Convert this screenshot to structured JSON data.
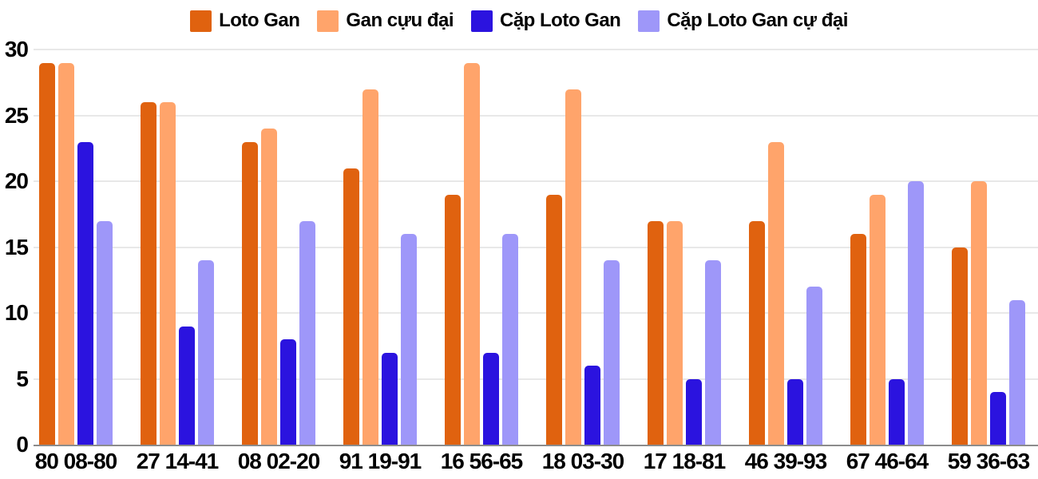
{
  "chart_data": {
    "type": "bar",
    "categories": [
      "80 08-80",
      "27 14-41",
      "08 02-20",
      "91 19-91",
      "16 56-65",
      "18 03-30",
      "17 18-81",
      "46 39-93",
      "67 46-64",
      "59 36-63"
    ],
    "series": [
      {
        "name": "Loto Gan",
        "color": "#E0620F",
        "values": [
          29,
          26,
          23,
          21,
          19,
          19,
          17,
          17,
          16,
          15
        ]
      },
      {
        "name": "Gan cựu đại",
        "color": "#FFA46B",
        "values": [
          29,
          26,
          24,
          27,
          29,
          27,
          17,
          23,
          19,
          20
        ]
      },
      {
        "name": "Cặp Loto Gan",
        "color": "#2B13DF",
        "values": [
          23,
          9,
          8,
          7,
          7,
          6,
          5,
          5,
          5,
          4
        ]
      },
      {
        "name": "Cặp Loto Gan cự đại",
        "color": "#9E97F9",
        "values": [
          17,
          14,
          17,
          16,
          16,
          14,
          14,
          12,
          20,
          11
        ]
      }
    ],
    "ylabel": "",
    "xlabel": "",
    "ylim": [
      0,
      30
    ],
    "yticks": [
      0,
      5,
      10,
      15,
      20,
      25,
      30
    ],
    "grid": true,
    "legend_position": "top"
  },
  "colors": {
    "background": "#FFFFFF",
    "gridline": "#E8E8E8",
    "baseline": "#8C8C8C",
    "text": "#000000"
  }
}
